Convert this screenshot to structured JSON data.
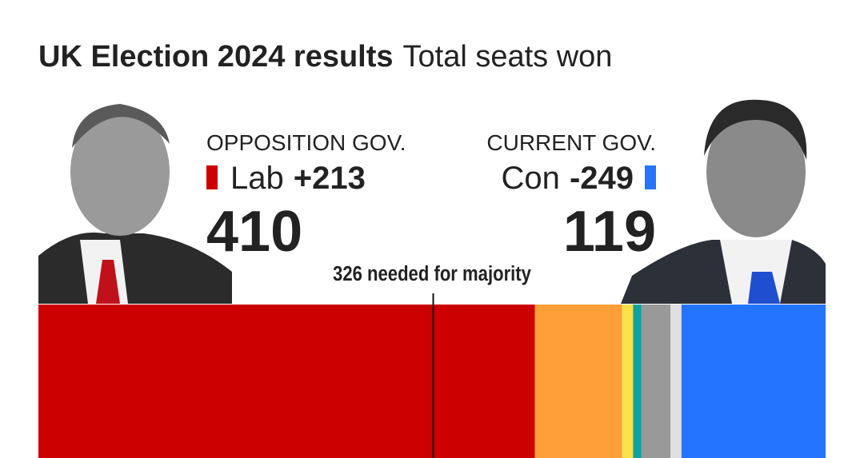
{
  "chart_data": {
    "type": "stacked-bar",
    "title": "UK Election 2024 results",
    "subtitle": "Total seats won",
    "xlim": [
      0,
      650
    ],
    "values": [
      410,
      72,
      9,
      7,
      24,
      9,
      119
    ],
    "colors": [
      "#cc0000",
      "#ff9f3a",
      "#fde14b",
      "#12a19a",
      "#999999",
      "#e0e0e0",
      "#2574ff"
    ],
    "left": {
      "role": "OPPOSITION GOV.",
      "party": "Lab",
      "change": {
        "value": 213,
        "label": "+213"
      },
      "index": 0
    },
    "right": {
      "role": "CURRENT GOV.",
      "party": "Con",
      "change": {
        "value": -249,
        "label": "-249"
      },
      "index": 6
    },
    "majority": {
      "value": 326,
      "label": "326 needed for majority"
    }
  }
}
